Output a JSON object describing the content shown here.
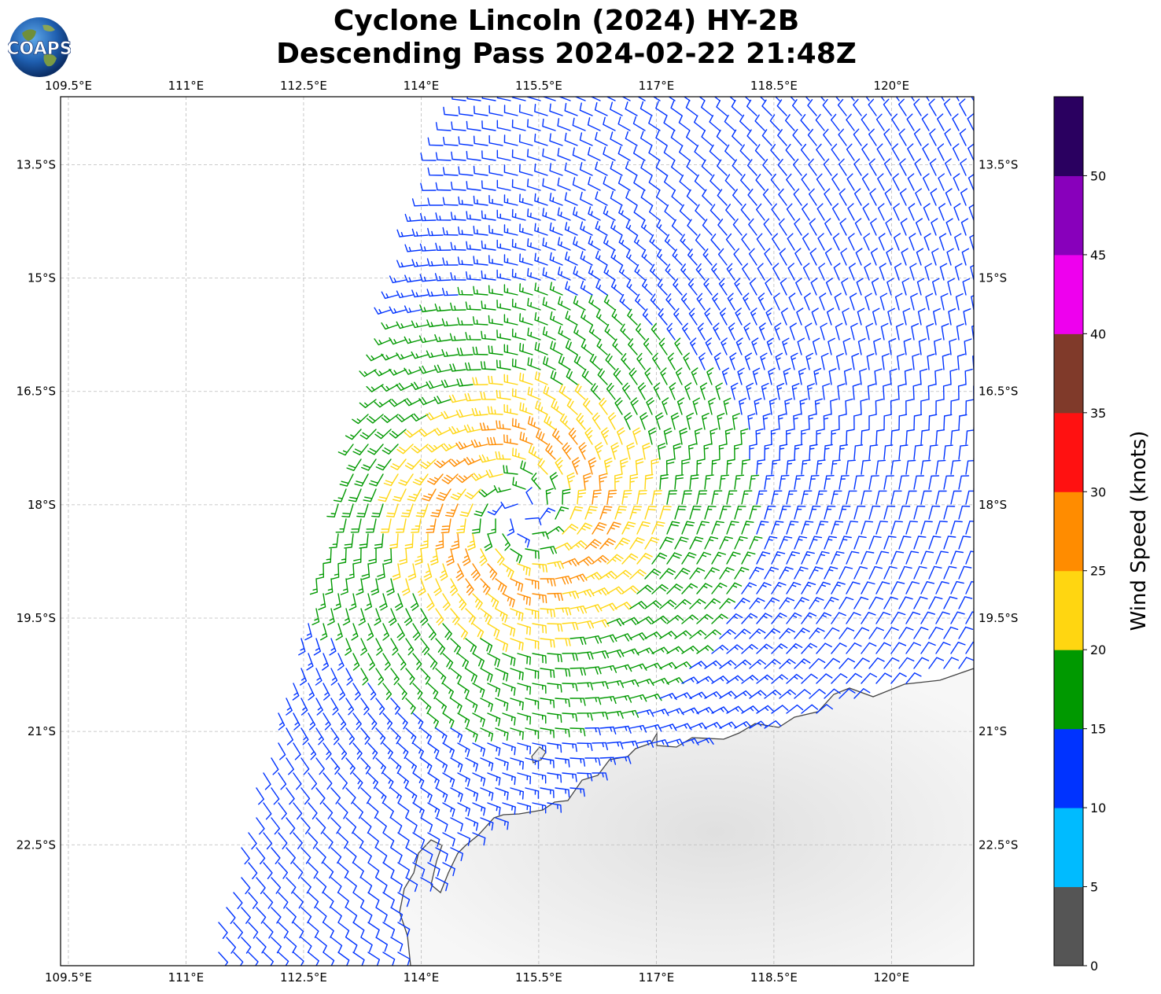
{
  "title": {
    "line1": "Cyclone Lincoln (2024) HY-2B",
    "line2": "Descending Pass 2024-02-22 21:48Z"
  },
  "logo": {
    "text": "COAPS",
    "icon": "globe-icon"
  },
  "map": {
    "lon_range": [
      109.4,
      121.05
    ],
    "lat_range": [
      -24.1,
      -12.6
    ],
    "lon_ticks": [
      "109.5°E",
      "111°E",
      "112.5°E",
      "114°E",
      "115.5°E",
      "117°E",
      "118.5°E",
      "120°E"
    ],
    "lon_tick_values": [
      109.5,
      111,
      112.5,
      114,
      115.5,
      117,
      118.5,
      120
    ],
    "lat_ticks": [
      "13.5°S",
      "15°S",
      "16.5°S",
      "18°S",
      "19.5°S",
      "21°S",
      "22.5°S"
    ],
    "lat_tick_values": [
      -13.5,
      -15,
      -16.5,
      -18,
      -19.5,
      -21,
      -22.5
    ],
    "grid": true,
    "cyclone_center": {
      "lon": 115.3,
      "lat": -18.1
    },
    "land": "Western Australia (Pilbara coast)"
  },
  "colorbar": {
    "label": "Wind Speed (knots)",
    "ticks": [
      "0",
      "5",
      "10",
      "15",
      "20",
      "25",
      "30",
      "35",
      "40",
      "45",
      "50"
    ],
    "bins": [
      {
        "min": 0,
        "max": 5,
        "color": "#555555"
      },
      {
        "min": 5,
        "max": 10,
        "color": "#00bbff"
      },
      {
        "min": 10,
        "max": 15,
        "color": "#0033ff"
      },
      {
        "min": 15,
        "max": 20,
        "color": "#009900"
      },
      {
        "min": 20,
        "max": 25,
        "color": "#ffd611"
      },
      {
        "min": 25,
        "max": 30,
        "color": "#ff8c00"
      },
      {
        "min": 30,
        "max": 35,
        "color": "#ff1111"
      },
      {
        "min": 35,
        "max": 40,
        "color": "#803a2a"
      },
      {
        "min": 40,
        "max": 45,
        "color": "#ee00ee"
      },
      {
        "min": 45,
        "max": 50,
        "color": "#8800bb"
      },
      {
        "min": 50,
        "max": 55,
        "color": "#2a0060"
      }
    ]
  }
}
